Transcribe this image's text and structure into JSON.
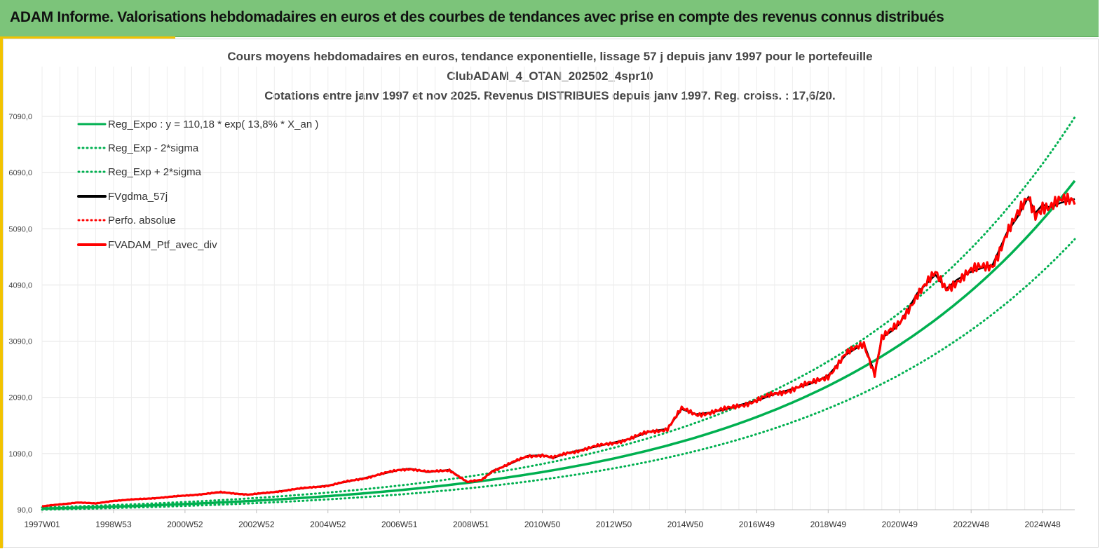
{
  "banner": {
    "title": "ADAM Informe. Valorisations hebdomadaires en euros et des courbes de tendances avec prise en compte des revenus connus distribués"
  },
  "colors": {
    "banner_bg": "#7cc47a",
    "accent": "#f2c300",
    "green": "#00b050",
    "black": "#000000",
    "red": "#ff0000"
  },
  "chart_data": {
    "type": "line",
    "title_lines": [
      "Cours moyens hebdomadaires  en euros, tendance exponentielle, lissage 57 j depuis janv 1997 pour le portefeuille",
      "ClubADAM_4_OTAN_202502_4spr10",
      "Cotations  entre janv 1997 et nov 2025. Revenus DISTRIBUES depuis janv 1997. Reg. croiss. : 17,6/20."
    ],
    "xlabel": "",
    "ylabel": "",
    "x_tick_labels": [
      "1997W01",
      "1998W53",
      "2000W52",
      "2002W52",
      "2004W52",
      "2006W51",
      "2008W51",
      "2010W50",
      "2012W50",
      "2014W50",
      "2016W49",
      "2018W49",
      "2020W49",
      "2022W48",
      "2024W48"
    ],
    "x_tick_years": [
      1997.0,
      1999.0,
      2001.0,
      2003.0,
      2005.0,
      2007.0,
      2009.0,
      2011.0,
      2013.0,
      2015.0,
      2017.0,
      2019.0,
      2021.0,
      2023.0,
      2025.0
    ],
    "xlim": [
      1997.0,
      2025.9
    ],
    "y_tick_labels": [
      "90,0",
      "1090,0",
      "2090,0",
      "3090,0",
      "4090,0",
      "5090,0",
      "6090,0",
      "7090,0"
    ],
    "y_ticks": [
      90,
      1090,
      2090,
      3090,
      4090,
      5090,
      6090,
      7090
    ],
    "ylim": [
      -80,
      7600
    ],
    "grid": true,
    "legend_position": "top-left",
    "series": [
      {
        "name": "Reg_Expo : y = 110,18 * exp( 13,8% *  X_an )",
        "style": "solid",
        "color": "#00b050",
        "formula": "110.18*exp(0.138*t)",
        "factor": 1.0
      },
      {
        "name": "Reg_Exp - 2*sigma",
        "style": "dotted",
        "color": "#00b050",
        "factor": 0.825
      },
      {
        "name": "Reg_Exp + 2*sigma",
        "style": "dotted",
        "color": "#00b050",
        "factor": 1.19
      },
      {
        "name": "FVgdma_57j",
        "style": "solid",
        "color": "#000000"
      },
      {
        "name": "Perfo. absolue",
        "style": "dotted",
        "color": "#ff0000"
      },
      {
        "name": "FVADAM_Ptf_avec_div",
        "style": "solid",
        "color": "#ff0000"
      }
    ],
    "portfolio_points": {
      "x": [
        1997.0,
        1998.0,
        1998.5,
        1999.0,
        2000.0,
        2001.0,
        2002.0,
        2002.8,
        2003.3,
        2004.0,
        2005.0,
        2006.0,
        2007.0,
        2007.3,
        2007.8,
        2008.4,
        2008.9,
        2009.3,
        2009.6,
        2010.0,
        2010.6,
        2011.0,
        2011.3,
        2011.7,
        2012.2,
        2012.9,
        2013.5,
        2014.0,
        2014.5,
        2014.9,
        2015.3,
        2015.7,
        2016.1,
        2016.5,
        2017.0,
        2017.5,
        2018.0,
        2018.5,
        2019.0,
        2019.5,
        2020.0,
        2020.3,
        2020.5,
        2020.8,
        2021.0,
        2021.5,
        2022.0,
        2022.3,
        2022.6,
        2022.9,
        2023.2,
        2023.6,
        2024.0,
        2024.3,
        2024.6,
        2024.8,
        2025.0,
        2025.2,
        2025.5,
        2025.9
      ],
      "y": [
        150,
        220,
        200,
        250,
        290,
        340,
        400,
        360,
        390,
        450,
        520,
        650,
        800,
        820,
        760,
        800,
        580,
        620,
        780,
        880,
        1050,
        1060,
        1010,
        1100,
        1170,
        1270,
        1360,
        1480,
        1530,
        1880,
        1790,
        1820,
        1870,
        1950,
        2030,
        2150,
        2240,
        2330,
        2480,
        2850,
        3050,
        2520,
        3150,
        3280,
        3400,
        3950,
        4270,
        4020,
        4180,
        4300,
        4370,
        4450,
        5020,
        5300,
        5650,
        5370,
        5520,
        5470,
        5550,
        5620
      ]
    }
  }
}
